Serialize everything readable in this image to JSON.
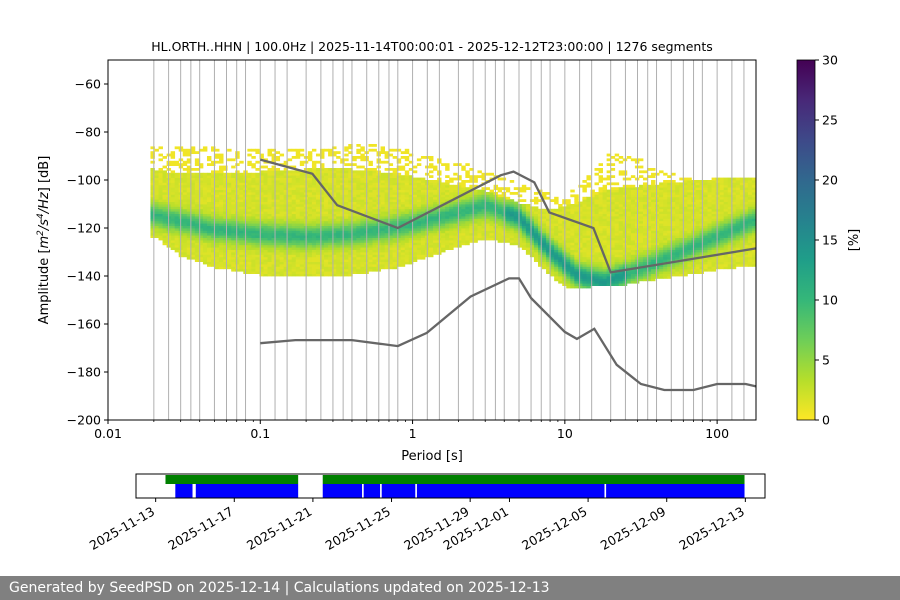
{
  "chart_data": {
    "type": "heatmap",
    "title": "HL.ORTH..HHN | 100.0Hz | 2025-11-14T00:00:01 - 2025-12-12T23:00:00 | 1276 segments",
    "xlabel": "Period [s]",
    "ylabel_parts": [
      "Amplitude [",
      "m",
      "2",
      "/s",
      "4",
      "/Hz",
      "] [dB]"
    ],
    "x_scale": "log",
    "xlim": [
      0.01,
      180
    ],
    "ylim": [
      -200,
      -50
    ],
    "x_ticks": [
      {
        "value": 0.01,
        "label": "0.01"
      },
      {
        "value": 0.1,
        "label": "0.1"
      },
      {
        "value": 1,
        "label": "1"
      },
      {
        "value": 10,
        "label": "10"
      },
      {
        "value": 100,
        "label": "100"
      }
    ],
    "y_ticks": [
      {
        "value": -60,
        "label": "−60"
      },
      {
        "value": -80,
        "label": "−80"
      },
      {
        "value": -100,
        "label": "−100"
      },
      {
        "value": -120,
        "label": "−120"
      },
      {
        "value": -140,
        "label": "−140"
      },
      {
        "value": -160,
        "label": "−160"
      },
      {
        "value": -180,
        "label": "−180"
      },
      {
        "value": -200,
        "label": "−200"
      }
    ],
    "grid": "vertical-lines-at-psd-periods",
    "grid_periods": [
      0.02,
      0.025,
      0.03,
      0.035,
      0.04,
      0.05,
      0.06,
      0.07,
      0.08,
      0.1,
      0.125,
      0.15,
      0.2,
      0.25,
      0.3,
      0.35,
      0.4,
      0.5,
      0.6,
      0.7,
      0.8,
      1,
      1.25,
      1.5,
      2,
      2.5,
      3,
      3.5,
      4,
      5,
      6,
      7,
      8,
      10,
      12.5,
      15,
      20,
      25,
      30,
      35,
      40,
      50,
      60,
      70,
      80,
      100,
      125,
      150
    ],
    "colorbar": {
      "label": "[%]",
      "range": [
        0,
        30
      ],
      "ticks": [
        {
          "value": 0,
          "label": "0"
        },
        {
          "value": 5,
          "label": "5"
        },
        {
          "value": 10,
          "label": "10"
        },
        {
          "value": 15,
          "label": "15"
        },
        {
          "value": 20,
          "label": "20"
        },
        {
          "value": 25,
          "label": "25"
        },
        {
          "value": 30,
          "label": "30"
        }
      ],
      "colormap": "viridis_r",
      "colors": [
        "#fde725",
        "#b5de2b",
        "#6ece58",
        "#35b779",
        "#1f9e89",
        "#26828e",
        "#31688e",
        "#3e4989",
        "#482878",
        "#440154"
      ]
    },
    "density": {
      "description_free": true,
      "mode_center": [
        [
          0.02,
          -115
        ],
        [
          0.05,
          -121
        ],
        [
          0.1,
          -123
        ],
        [
          0.2,
          -124
        ],
        [
          0.4,
          -123
        ],
        [
          0.8,
          -120
        ],
        [
          1.5,
          -116
        ],
        [
          3,
          -111
        ],
        [
          5,
          -116
        ],
        [
          8,
          -130
        ],
        [
          12,
          -140
        ],
        [
          18,
          -143
        ],
        [
          30,
          -138
        ],
        [
          60,
          -130
        ],
        [
          100,
          -124
        ],
        [
          180,
          -117
        ]
      ],
      "lower_edge": [
        [
          0.02,
          -124
        ],
        [
          0.03,
          -132
        ],
        [
          0.05,
          -137
        ],
        [
          0.1,
          -140
        ],
        [
          0.2,
          -141
        ],
        [
          0.4,
          -140
        ],
        [
          0.8,
          -137
        ],
        [
          1.5,
          -131
        ],
        [
          3,
          -125
        ],
        [
          5,
          -128
        ],
        [
          8,
          -140
        ],
        [
          10,
          -145
        ],
        [
          15,
          -145
        ],
        [
          25,
          -144
        ],
        [
          50,
          -141
        ],
        [
          100,
          -138
        ],
        [
          180,
          -136
        ]
      ],
      "upper_edge": [
        [
          0.02,
          -96
        ],
        [
          0.03,
          -98
        ],
        [
          0.05,
          -98
        ],
        [
          0.1,
          -97
        ],
        [
          0.2,
          -96
        ],
        [
          0.4,
          -96
        ],
        [
          0.8,
          -98
        ],
        [
          1.5,
          -101
        ],
        [
          3,
          -105
        ],
        [
          5,
          -110
        ],
        [
          8,
          -113
        ],
        [
          12,
          -110
        ],
        [
          18,
          -105
        ],
        [
          30,
          -103
        ],
        [
          60,
          -101
        ],
        [
          100,
          -100
        ],
        [
          180,
          -99
        ]
      ],
      "sparse_upper": [
        [
          0.025,
          -86
        ],
        [
          0.12,
          -88
        ],
        [
          0.25,
          -86
        ],
        [
          0.5,
          -85
        ],
        [
          1,
          -88
        ],
        [
          2,
          -92
        ],
        [
          3.5,
          -98
        ],
        [
          6,
          -104
        ],
        [
          10,
          -107
        ],
        [
          16,
          -96
        ],
        [
          20,
          -89
        ],
        [
          30,
          -91
        ],
        [
          45,
          -96
        ],
        [
          60,
          -100
        ]
      ]
    },
    "reference_curves": [
      {
        "color": "#666666",
        "points": [
          [
            0.1,
            -91.5
          ],
          [
            0.22,
            -97.4
          ],
          [
            0.32,
            -110.5
          ],
          [
            0.8,
            -120
          ],
          [
            3.8,
            -98
          ],
          [
            4.6,
            -96.5
          ],
          [
            6.3,
            -101
          ],
          [
            7.9,
            -113.5
          ],
          [
            15.4,
            -120
          ],
          [
            20,
            -138.5
          ],
          [
            180,
            -128.5
          ]
        ]
      },
      {
        "color": "#666666",
        "points": [
          [
            0.1,
            -168
          ],
          [
            0.17,
            -166.7
          ],
          [
            0.4,
            -166.7
          ],
          [
            0.8,
            -169.2
          ],
          [
            1.24,
            -163.7
          ],
          [
            2.4,
            -148.6
          ],
          [
            4.3,
            -141
          ],
          [
            5.0,
            -141
          ],
          [
            6.0,
            -149.2
          ],
          [
            10,
            -163.3
          ],
          [
            12,
            -166.2
          ],
          [
            15.6,
            -162
          ],
          [
            21.9,
            -177
          ],
          [
            31.6,
            -185
          ],
          [
            45,
            -187.5
          ],
          [
            70,
            -187.5
          ],
          [
            100,
            -185
          ],
          [
            154,
            -185
          ],
          [
            180,
            -186
          ]
        ]
      }
    ],
    "availability": {
      "date_ticks": [
        "2025-11-13",
        "2025-11-17",
        "2025-11-21",
        "2025-11-25",
        "2025-11-29",
        "2025-12-01",
        "2025-12-05",
        "2025-12-09",
        "2025-12-13"
      ],
      "range": [
        "2025-11-12T00:00",
        "2025-12-14T00:00"
      ],
      "data_spans": [
        [
          "2025-11-13T12:00",
          "2025-11-20T06:00"
        ],
        [
          "2025-11-21T12:00",
          "2025-12-12T23:00"
        ]
      ],
      "psd_spans": [
        [
          "2025-11-14T00:00",
          "2025-11-14T21:00"
        ],
        [
          "2025-11-15T01:00",
          "2025-11-20T06:00"
        ],
        [
          "2025-11-21T12:00",
          "2025-11-23T12:00"
        ],
        [
          "2025-11-23T14:00",
          "2025-11-24T10:00"
        ],
        [
          "2025-11-24T12:00",
          "2025-11-26T05:00"
        ],
        [
          "2025-11-26T07:00",
          "2025-12-05T20:00"
        ],
        [
          "2025-12-05T22:00",
          "2025-12-12T23:00"
        ]
      ],
      "data_color": "#008000",
      "psd_color": "#0000ff"
    }
  },
  "footer": {
    "text": "Generated by SeedPSD on 2025-12-14 | Calculations updated on 2025-12-13"
  }
}
